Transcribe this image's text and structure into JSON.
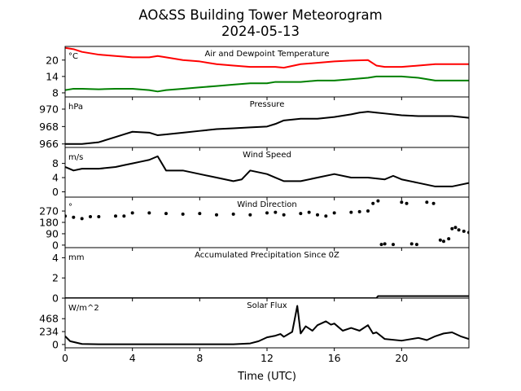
{
  "title_line1": "AO&SS Building Tower Meteorogram",
  "title_line2": "2024-05-13",
  "xlabel": "Time (UTC)",
  "chart_data": [
    {
      "type": "line",
      "id": "temp",
      "title": "Air and Dewpoint Temperature",
      "unit": "°C",
      "ylim": [
        6.5,
        25
      ],
      "yticks": [
        8,
        14,
        20
      ],
      "xlim": [
        0,
        24
      ],
      "x": [
        0,
        0.5,
        1,
        2,
        3,
        4,
        5,
        5.5,
        6,
        7,
        8,
        9,
        10,
        11,
        12,
        12.5,
        13,
        14,
        15,
        16,
        17,
        18,
        18.5,
        19,
        20,
        21,
        22,
        23,
        24
      ],
      "series": [
        {
          "color": "#ff0000",
          "values": [
            24.5,
            24,
            23,
            22,
            21.5,
            21,
            21,
            21.5,
            21,
            20,
            19.5,
            18.5,
            18,
            17.5,
            17.5,
            17.5,
            17.2,
            18.5,
            19,
            19.5,
            19.8,
            20,
            18,
            17.5,
            17.5,
            18,
            18.5,
            18.5,
            18.5
          ]
        },
        {
          "color": "#008000",
          "values": [
            9,
            9.5,
            9.5,
            9.3,
            9.5,
            9.5,
            9,
            8.5,
            9,
            9.5,
            10,
            10.5,
            11,
            11.5,
            11.5,
            12,
            12,
            12,
            12.5,
            12.5,
            13,
            13.5,
            14,
            14,
            14,
            13.5,
            12.5,
            12.5,
            12.5
          ]
        }
      ]
    },
    {
      "type": "line",
      "id": "pressure",
      "title": "Pressure",
      "unit": "hPa",
      "ylim": [
        965.6,
        971.4
      ],
      "yticks": [
        966,
        968,
        970
      ],
      "xlim": [
        0,
        24
      ],
      "x": [
        0,
        1,
        2,
        3,
        3.5,
        4,
        5,
        5.5,
        6,
        7,
        8,
        9,
        10,
        11,
        12,
        12.5,
        13,
        14,
        15,
        16,
        17,
        17.5,
        18,
        18.5,
        19,
        20,
        21,
        22,
        23,
        24
      ],
      "series": [
        {
          "color": "#000000",
          "values": [
            966,
            966,
            966.2,
            966.8,
            967.1,
            967.4,
            967.3,
            967,
            967.1,
            967.3,
            967.5,
            967.7,
            967.8,
            967.9,
            968,
            968.3,
            968.7,
            968.9,
            968.9,
            969.1,
            969.4,
            969.6,
            969.7,
            969.6,
            969.5,
            969.3,
            969.2,
            969.2,
            969.2,
            969.0
          ]
        }
      ]
    },
    {
      "type": "line",
      "id": "wind_speed",
      "title": "Wind Speed",
      "unit": "m/s",
      "ylim": [
        -1.5,
        12.5
      ],
      "yticks": [
        0,
        4,
        8
      ],
      "xlim": [
        0,
        24
      ],
      "x": [
        0,
        0.5,
        1,
        2,
        3,
        3.5,
        4,
        4.5,
        5,
        5.5,
        6,
        7,
        8,
        9,
        10,
        10.5,
        11,
        12,
        12.5,
        13,
        14,
        15,
        16,
        17,
        18,
        19,
        19.5,
        20,
        21,
        22,
        23,
        24
      ],
      "series": [
        {
          "color": "#000000",
          "values": [
            7,
            6,
            6.5,
            6.5,
            7,
            7.5,
            8,
            8.5,
            9,
            10,
            6,
            6,
            5,
            4,
            3,
            3.5,
            6,
            5,
            4,
            3,
            3,
            4,
            5,
            4,
            4,
            3.5,
            4.5,
            3.5,
            2.5,
            1.5,
            1.5,
            2.5
          ]
        }
      ]
    },
    {
      "type": "scatter",
      "id": "wind_direction",
      "title": "Wind Direction",
      "unit": "°",
      "ylim": [
        -20,
        380
      ],
      "yticks": [
        0,
        90,
        180,
        270
      ],
      "xlim": [
        0,
        24
      ],
      "x": [
        0,
        0.5,
        1,
        1.5,
        2,
        3,
        3.5,
        4,
        5,
        6,
        7,
        8,
        9,
        10,
        11,
        12,
        12.5,
        13,
        14,
        14.5,
        15,
        15.5,
        16,
        17,
        17.5,
        18,
        18.3,
        18.6,
        18.8,
        19,
        19.5,
        20,
        20.3,
        20.6,
        20.9,
        21.5,
        21.9,
        22.3,
        22.5,
        22.8,
        23,
        23.2,
        23.4,
        23.7,
        24
      ],
      "series": [
        {
          "color": "#000000",
          "values": [
            230,
            220,
            210,
            225,
            225,
            230,
            230,
            255,
            255,
            250,
            245,
            250,
            240,
            245,
            240,
            255,
            260,
            240,
            250,
            260,
            240,
            230,
            255,
            260,
            265,
            270,
            330,
            350,
            5,
            10,
            5,
            340,
            330,
            10,
            5,
            340,
            330,
            40,
            30,
            50,
            130,
            140,
            120,
            110,
            100
          ]
        }
      ]
    },
    {
      "type": "area",
      "id": "precip",
      "title": "Accumulated Precipitation Since 0Z",
      "unit": "mm",
      "ylim": [
        0,
        5
      ],
      "yticks": [
        0,
        2,
        4
      ],
      "xlim": [
        0,
        24
      ],
      "x": [
        0,
        18.5,
        18.6,
        24
      ],
      "series": [
        {
          "color": "#000000",
          "values": [
            0,
            0,
            0.2,
            0.2
          ]
        }
      ]
    },
    {
      "type": "line",
      "id": "solar",
      "title": "Solar Flux",
      "unit": "W/m^2",
      "ylim": [
        -60,
        840
      ],
      "yticks": [
        0,
        234,
        468
      ],
      "xlim": [
        0,
        24
      ],
      "x": [
        0,
        0.3,
        1,
        2,
        4,
        6,
        8,
        10,
        11,
        11.5,
        12,
        12.5,
        12.8,
        13,
        13.5,
        13.8,
        13.9,
        14,
        14.3,
        14.7,
        15,
        15.5,
        15.8,
        16,
        16.5,
        17,
        17.5,
        18,
        18.3,
        18.5,
        19,
        20,
        21,
        21.5,
        22,
        22.5,
        23,
        23.5,
        24
      ],
      "series": [
        {
          "color": "#000000",
          "values": [
            150,
            60,
            10,
            5,
            5,
            5,
            5,
            5,
            20,
            60,
            130,
            160,
            190,
            140,
            230,
            700,
            450,
            200,
            330,
            250,
            350,
            420,
            360,
            380,
            250,
            300,
            250,
            350,
            200,
            220,
            100,
            70,
            120,
            80,
            150,
            200,
            220,
            150,
            100
          ]
        }
      ]
    }
  ]
}
